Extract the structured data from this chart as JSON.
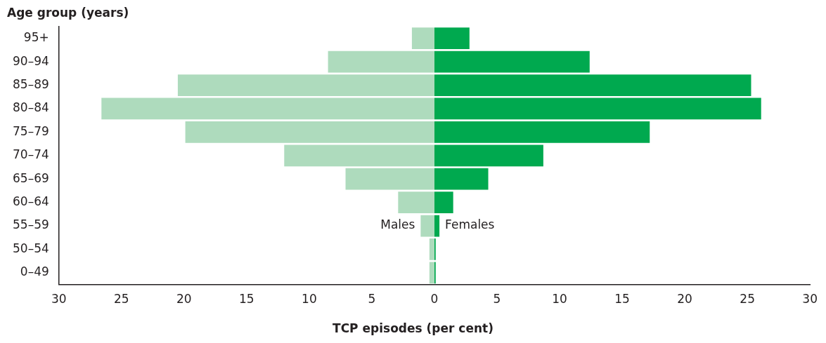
{
  "chart_data": {
    "type": "bar",
    "orientation": "horizontal",
    "stacked": true,
    "ylabel": "Age group (years)",
    "xlabel": "TCP episodes (per cent)",
    "categories": [
      "95+",
      "90–94",
      "85–89",
      "80–84",
      "75–79",
      "70–74",
      "65–69",
      "60–64",
      "55–59",
      "50–54",
      "0–49"
    ],
    "series": [
      {
        "name": "Males",
        "color": "#aedbbd",
        "values": [
          -1.8,
          -8.5,
          -20.5,
          -26.6,
          -19.9,
          -12.0,
          -7.1,
          -2.9,
          -1.1,
          -0.4,
          -0.4
        ]
      },
      {
        "name": "Females",
        "color": "#00a94f",
        "values": [
          2.8,
          12.4,
          25.3,
          26.1,
          17.2,
          8.7,
          4.3,
          1.5,
          0.4,
          0.1,
          0.1
        ]
      }
    ],
    "xlim": [
      -30,
      30
    ],
    "xticks": [
      {
        "value": -30,
        "label": "30"
      },
      {
        "value": -25,
        "label": "25"
      },
      {
        "value": -20,
        "label": "20"
      },
      {
        "value": -15,
        "label": "15"
      },
      {
        "value": -10,
        "label": "10"
      },
      {
        "value": -5,
        "label": "5"
      },
      0,
      5,
      10,
      15,
      20,
      25,
      30
    ],
    "grid": false,
    "legend": false
  }
}
